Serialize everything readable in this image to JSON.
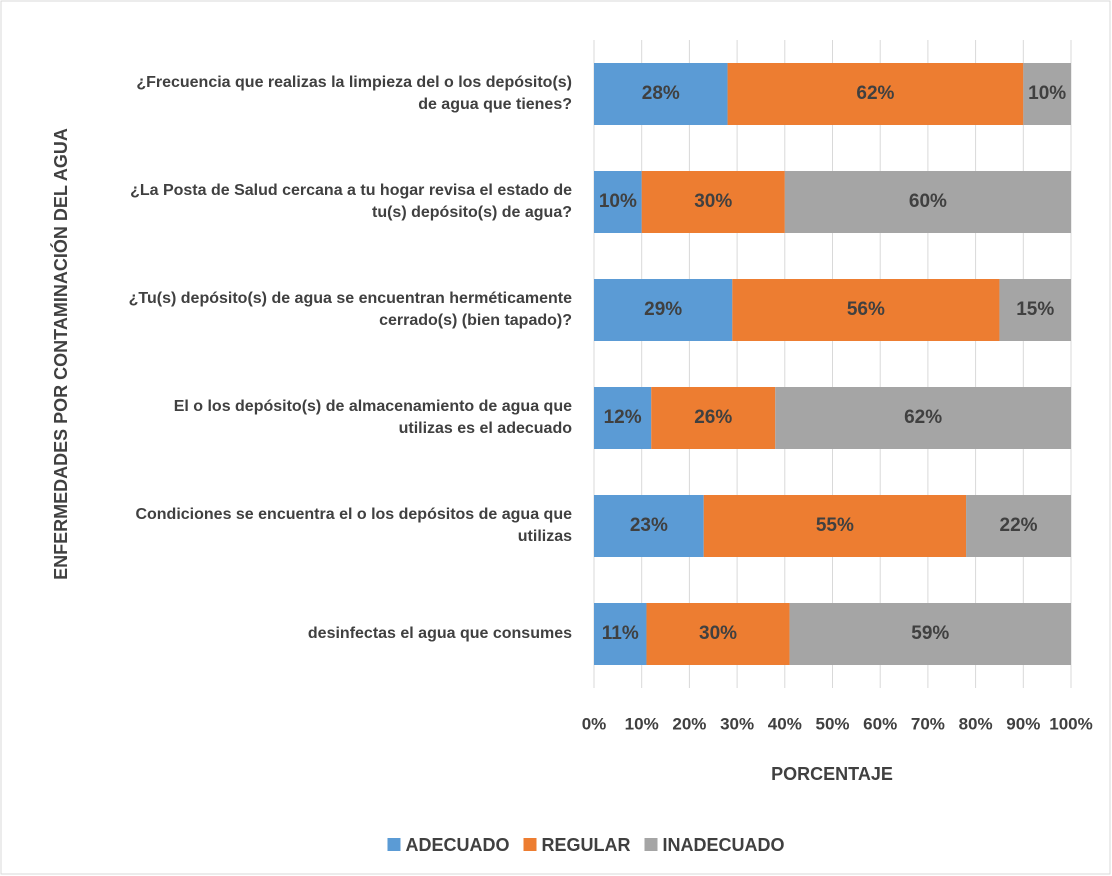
{
  "chart_data": {
    "type": "stacked_barh",
    "xlabel": "PORCENTAJE",
    "ylabel": "ENFERMEDADES POR CONTAMINACIÓN DEL AGUA",
    "categories": [
      "¿Frecuencia que realizas la limpieza del o los depósito(s) de agua que tienes?",
      "¿La Posta de Salud cercana a tu hogar revisa el estado de tu(s) depósito(s) de agua?",
      "¿Tu(s) depósito(s) de agua se encuentran herméticamente cerrado(s) (bien tapado)?",
      "El o los depósito(s) de almacenamiento de agua que utilizas es el adecuado",
      "Condiciones se encuentra el o los depósitos de agua que utilizas",
      "desinfectas el agua que consumes"
    ],
    "series": [
      {
        "name": "ADECUADO",
        "color": "#5b9bd5",
        "values": [
          28,
          10,
          29,
          12,
          23,
          11
        ],
        "value_labels": [
          "28%",
          "10%",
          "29%",
          "12%",
          "23%",
          "11%"
        ]
      },
      {
        "name": "REGULAR",
        "color": "#ed7d31",
        "values": [
          62,
          30,
          56,
          26,
          55,
          30
        ],
        "value_labels": [
          "62%",
          "30%",
          "56%",
          "26%",
          "55%",
          "30%"
        ]
      },
      {
        "name": "INADECUADO",
        "color": "#a5a5a5",
        "values": [
          10,
          60,
          15,
          62,
          22,
          59
        ],
        "value_labels": [
          "10%",
          "60%",
          "15%",
          "62%",
          "22%",
          "59%"
        ]
      }
    ],
    "xlim": [
      0,
      100
    ],
    "xticks": [
      {
        "value": 0,
        "label": "0%"
      },
      {
        "value": 10,
        "label": "10%"
      },
      {
        "value": 20,
        "label": "20%"
      },
      {
        "value": 30,
        "label": "30%"
      },
      {
        "value": 40,
        "label": "40%"
      },
      {
        "value": 50,
        "label": "50%"
      },
      {
        "value": 60,
        "label": "60%"
      },
      {
        "value": 70,
        "label": "70%"
      },
      {
        "value": 80,
        "label": "80%"
      },
      {
        "value": 90,
        "label": "90%"
      },
      {
        "value": 100,
        "label": "100%"
      }
    ],
    "grid": true,
    "legend": "bottom"
  }
}
